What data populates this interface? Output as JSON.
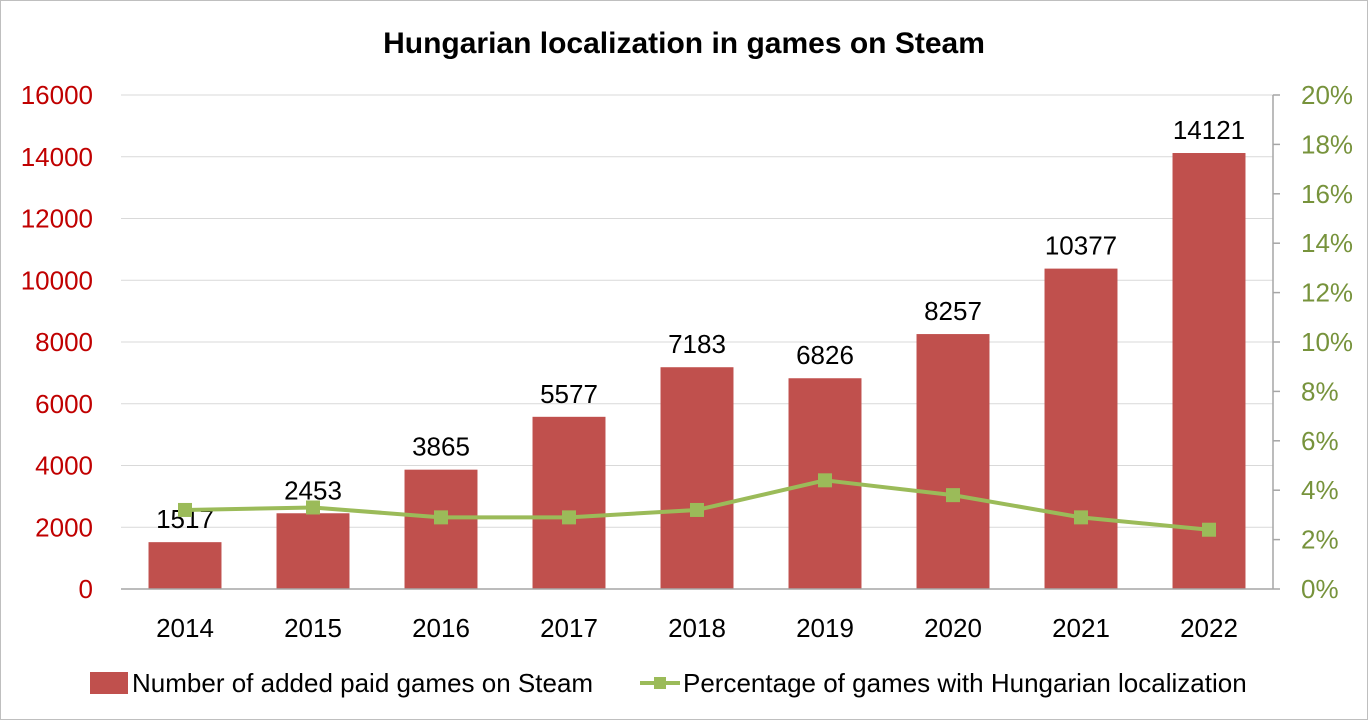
{
  "chart_data": {
    "type": "bar",
    "title": "Hungarian localization in games on Steam",
    "categories": [
      "2014",
      "2015",
      "2016",
      "2017",
      "2018",
      "2019",
      "2020",
      "2021",
      "2022"
    ],
    "series": [
      {
        "name": "Number of added paid games on Steam",
        "kind": "bar",
        "axis": "left",
        "color": "#c0504d",
        "values": [
          1517,
          2453,
          3865,
          5577,
          7183,
          6826,
          8257,
          10377,
          14121
        ]
      },
      {
        "name": "Percentage of games with Hungarian localization",
        "kind": "line",
        "axis": "right",
        "color": "#9bbb59",
        "values": [
          3.2,
          3.3,
          2.9,
          2.9,
          3.2,
          4.4,
          3.8,
          2.9,
          2.4
        ]
      }
    ],
    "ylim_left": [
      0,
      16000
    ],
    "yticks_left": [
      "0",
      "2000",
      "4000",
      "6000",
      "8000",
      "10000",
      "12000",
      "14000",
      "16000"
    ],
    "ylim_right": [
      0,
      20
    ],
    "yticks_right": [
      "0%",
      "2%",
      "4%",
      "6%",
      "8%",
      "10%",
      "12%",
      "14%",
      "16%",
      "18%",
      "20%"
    ],
    "left_axis_color": "#c00000",
    "right_axis_color": "#77933c",
    "grid": true,
    "legend_position": "bottom"
  }
}
